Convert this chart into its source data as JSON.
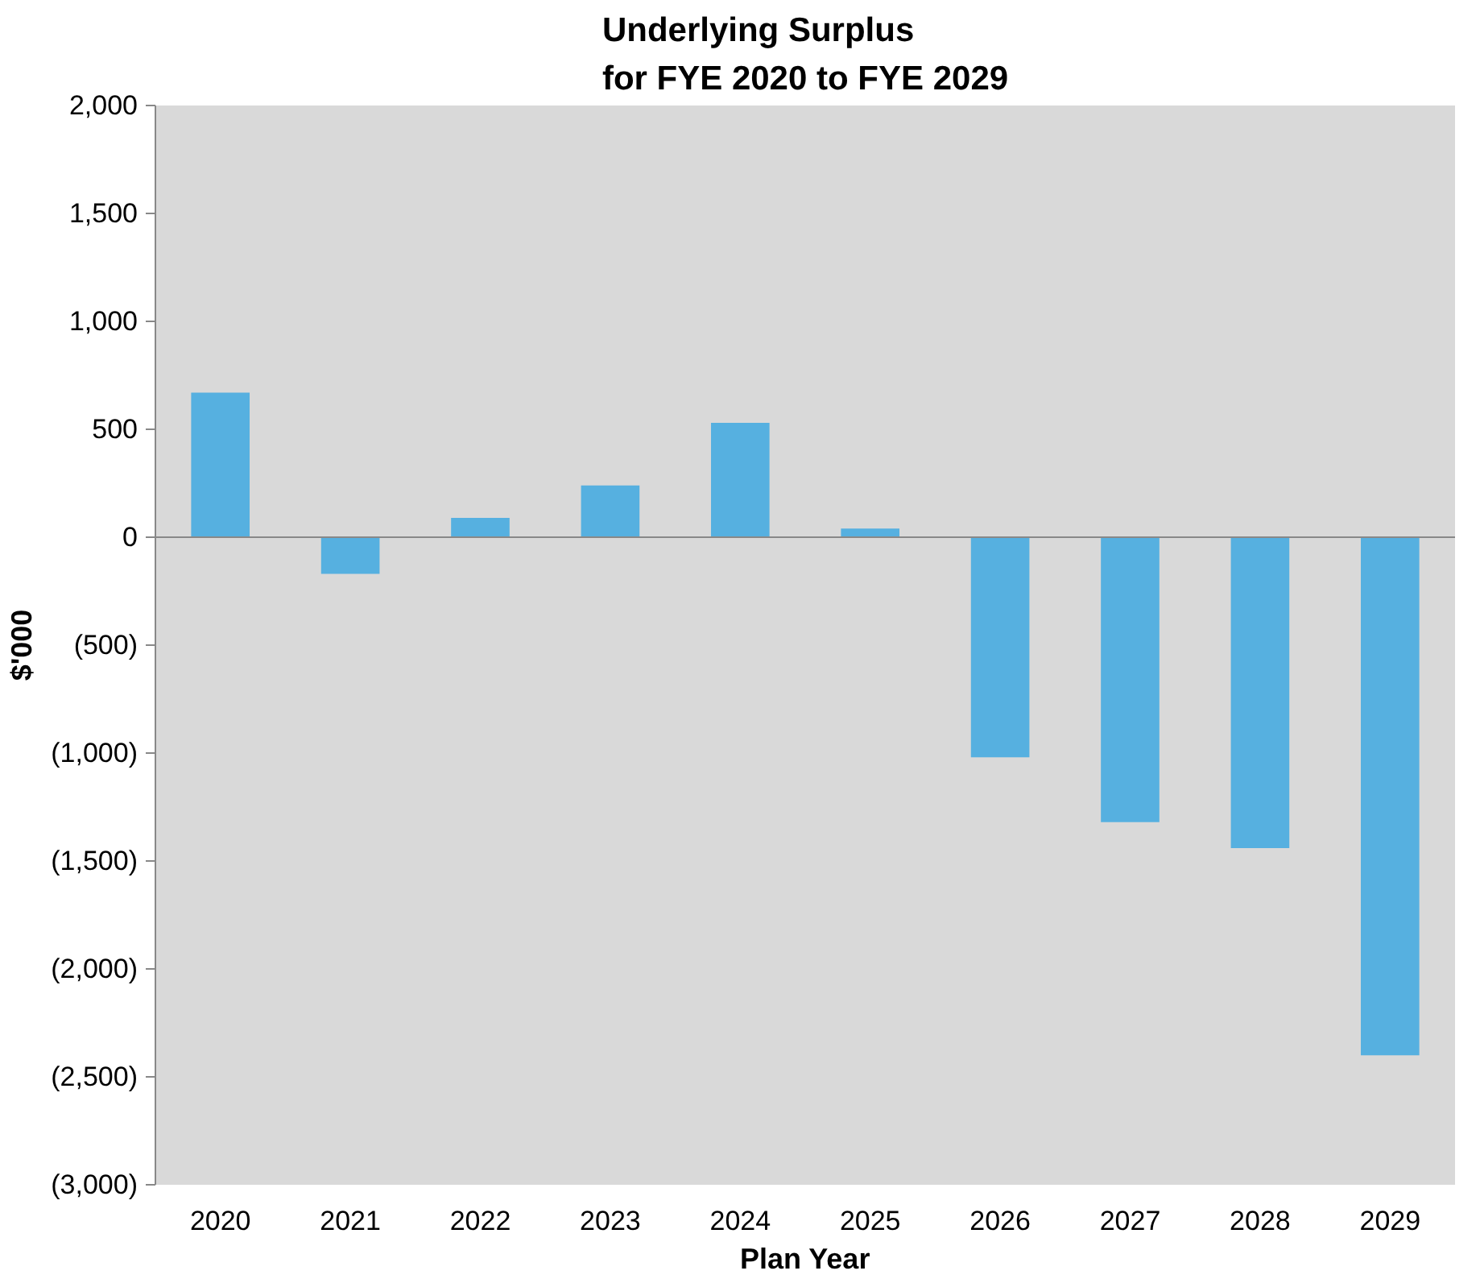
{
  "chart_data": {
    "type": "bar",
    "title": "Underlying Surplus\nfor FYE 2020 to FYE 2029",
    "xlabel": "Plan Year",
    "ylabel": "$'000",
    "categories": [
      "2020",
      "2021",
      "2022",
      "2023",
      "2024",
      "2025",
      "2026",
      "2027",
      "2028",
      "2029"
    ],
    "values": [
      670,
      -170,
      90,
      240,
      530,
      40,
      -1020,
      -1320,
      -1440,
      -2400
    ],
    "color": "#56b0e0",
    "ylim": [
      -3000,
      2000
    ],
    "yticks": [
      {
        "value": 2000,
        "label": "2,000"
      },
      {
        "value": 1500,
        "label": "1,500"
      },
      {
        "value": 1000,
        "label": "1,000"
      },
      500,
      0,
      {
        "value": -500,
        "label": "(500)"
      },
      {
        "value": -1000,
        "label": "(1,000)"
      },
      {
        "value": -1500,
        "label": "(1,500)"
      },
      {
        "value": -2000,
        "label": "(2,000)"
      },
      {
        "value": -2500,
        "label": "(2,500)"
      },
      {
        "value": -3000,
        "label": "(3,000)"
      }
    ],
    "ref_lines": [
      {
        "axis": "y",
        "value": 0,
        "color": "#888888"
      }
    ],
    "grid": false
  }
}
